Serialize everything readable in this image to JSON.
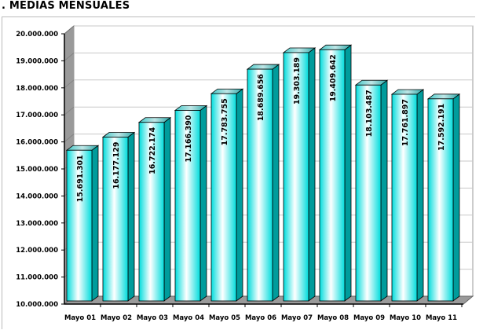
{
  "title": ". MEDIAS MENSUALES",
  "chart_data": {
    "type": "bar",
    "title": "MEDIAS MENSUALES",
    "xlabel": "",
    "ylabel": "",
    "ylim": [
      10000000,
      20000000
    ],
    "yticks": [
      "10.000.000",
      "11.000.000",
      "12.000.000",
      "13.000.000",
      "14.000.000",
      "15.000.000",
      "16.000.000",
      "17.000.000",
      "18.000.000",
      "19.000.000",
      "20.000.000"
    ],
    "categories": [
      "Mayo 01",
      "Mayo 02",
      "Mayo 03",
      "Mayo 04",
      "Mayo 05",
      "Mayo 06",
      "Mayo 07",
      "Mayo 08",
      "Mayo 09",
      "Mayo 10",
      "Mayo 11"
    ],
    "values": [
      15691301,
      16177129,
      16722174,
      17166390,
      17783755,
      18689656,
      19303189,
      19409642,
      18103487,
      17761897,
      17592191
    ],
    "value_labels": [
      "15.691.301",
      "16.177.129",
      "16.722.174",
      "17.166.390",
      "17.783.755",
      "18.689.656",
      "19.303.189",
      "19.409.642",
      "18.103.487",
      "17.761.897",
      "17.592.191"
    ],
    "grid": true,
    "colors": {
      "bar_front": "#00e5e5",
      "bar_side": "#009c9c",
      "wall": "#999999"
    }
  }
}
